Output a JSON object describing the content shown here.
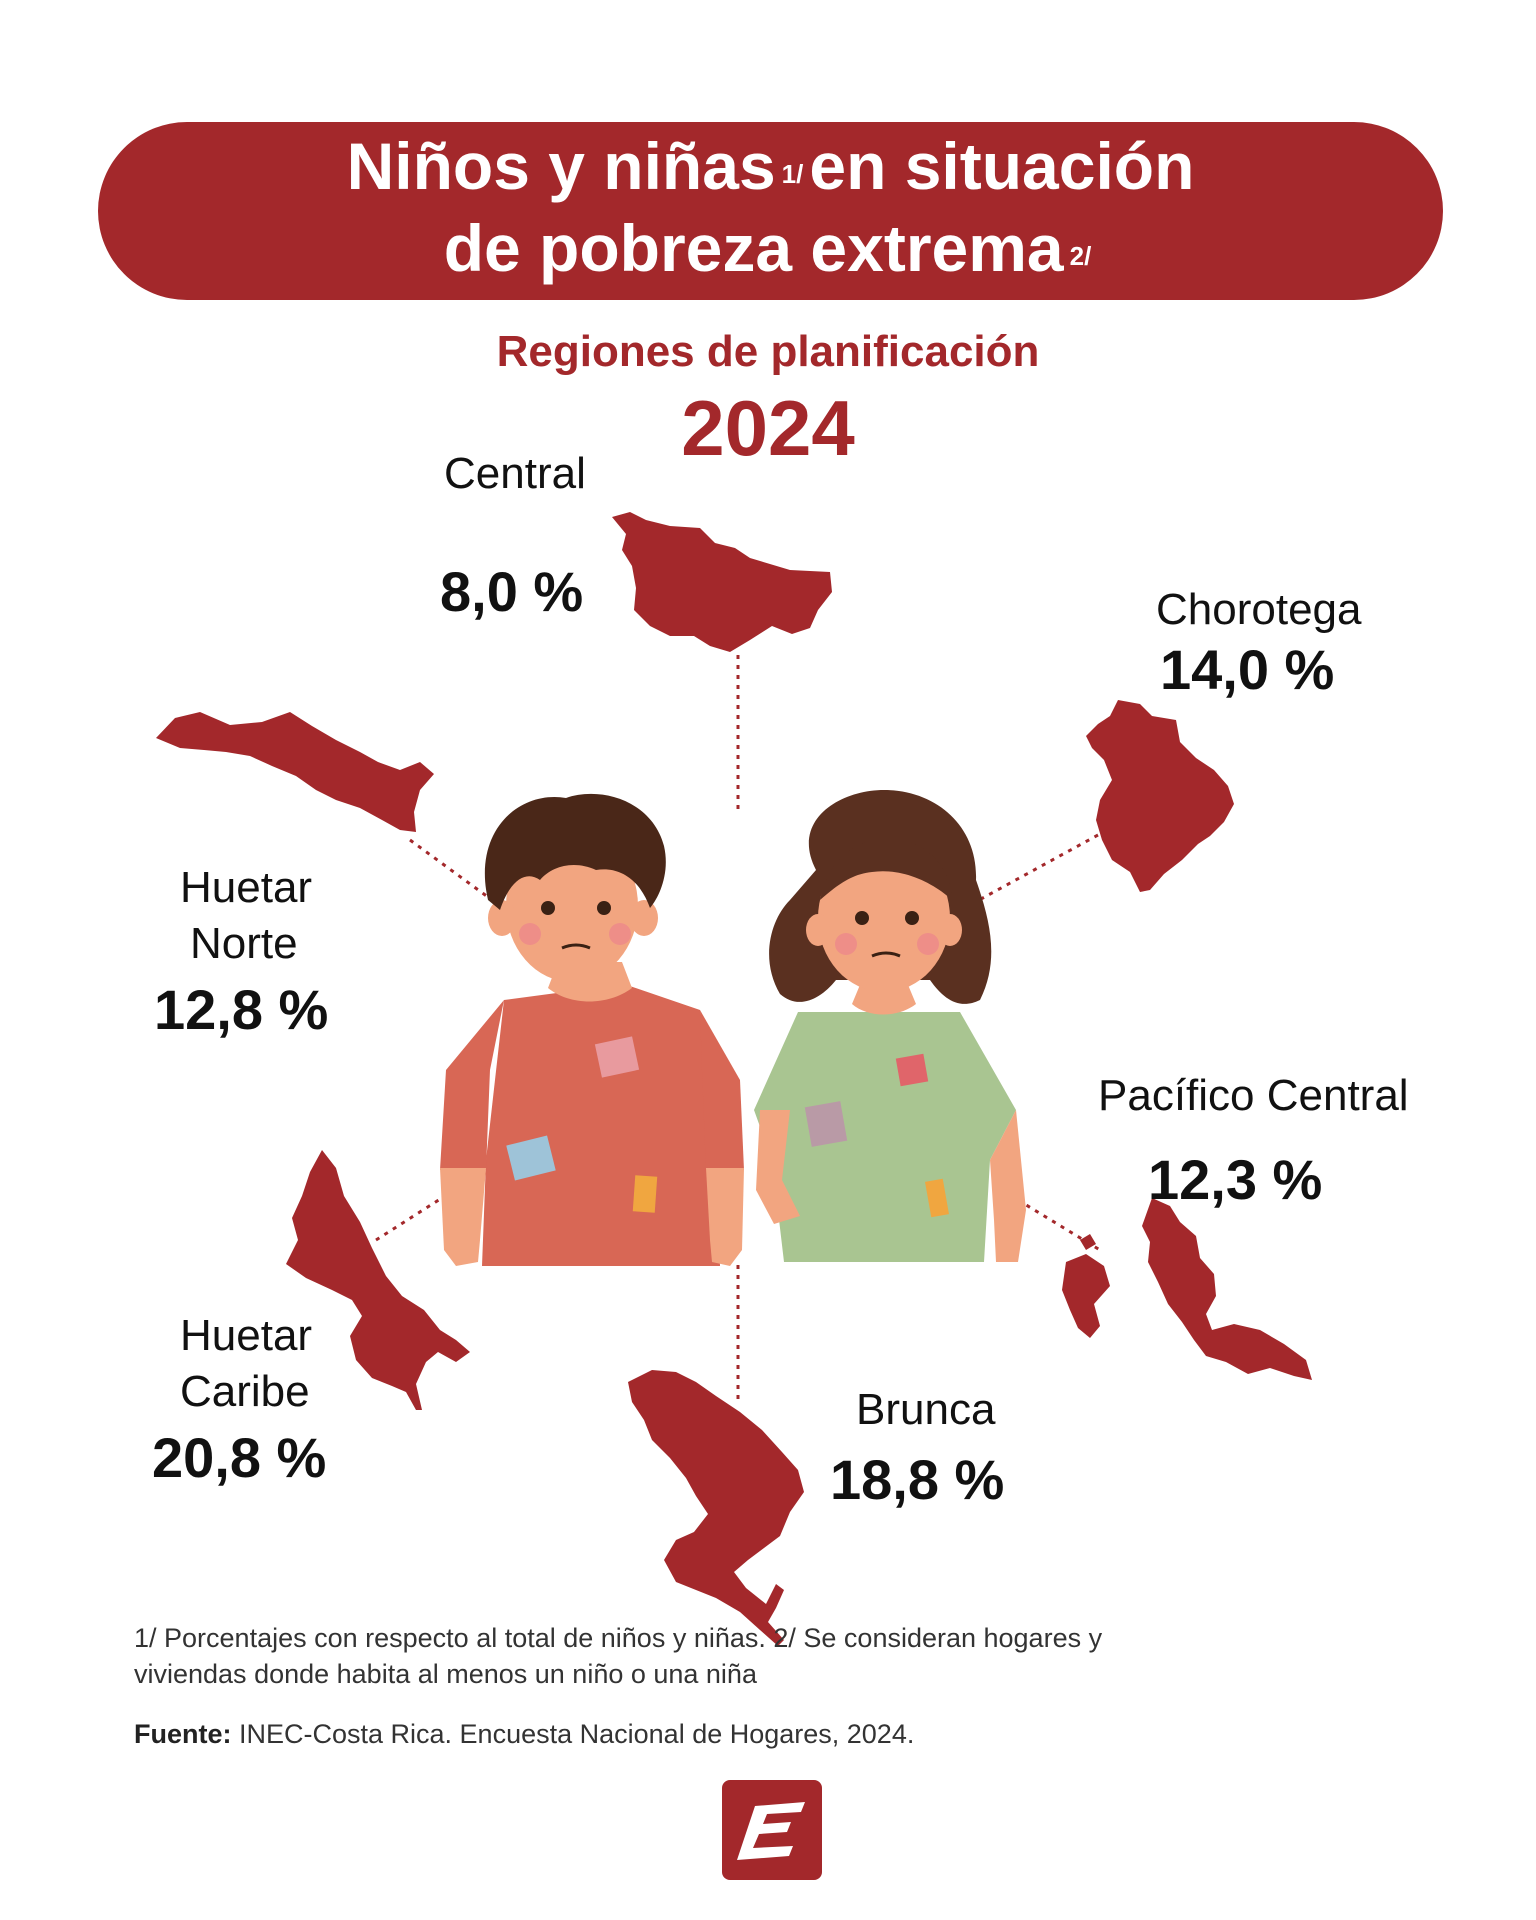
{
  "header": {
    "title_line1_a": "Niños y niñas",
    "title_line1_sup": "1/",
    "title_line1_b": "en situación",
    "title_line2_a": "de pobreza extrema",
    "title_line2_sup": "2/"
  },
  "subtitle": "Regiones de planificación",
  "year": "2024",
  "colors": {
    "accent": "#a3282b",
    "text": "#111111"
  },
  "regions": [
    {
      "id": "central",
      "name": "Central",
      "value_label": "8,0 %",
      "value": 8.0
    },
    {
      "id": "chorotega",
      "name": "Chorotega",
      "value_label": "14,0 %",
      "value": 14.0
    },
    {
      "id": "huetar-norte",
      "name_line1": "Huetar",
      "name_line2": "Norte",
      "value_label": "12,8 %",
      "value": 12.8
    },
    {
      "id": "pacifico-central",
      "name": "Pacífico Central",
      "value_label": "12,3 %",
      "value": 12.3
    },
    {
      "id": "huetar-caribe",
      "name_line1": "Huetar",
      "name_line2": "Caribe",
      "value_label": "20,8 %",
      "value": 20.8
    },
    {
      "id": "brunca",
      "name": "Brunca",
      "value_label": "18,8 %",
      "value": 18.8
    }
  ],
  "footnote_line1": "1/ Porcentajes con respecto al total de niños y niñas. 2/ Se consideran hogares y",
  "footnote_line2": "viviendas donde habita al menos un niño o una niña",
  "source": {
    "label": "Fuente:",
    "text": " INEC-Costa Rica. Encuesta Nacional de Hogares, 2024."
  },
  "icons": {
    "logo": "inec-e-logo-icon",
    "boy": "boy-illustration",
    "girl": "girl-illustration"
  }
}
